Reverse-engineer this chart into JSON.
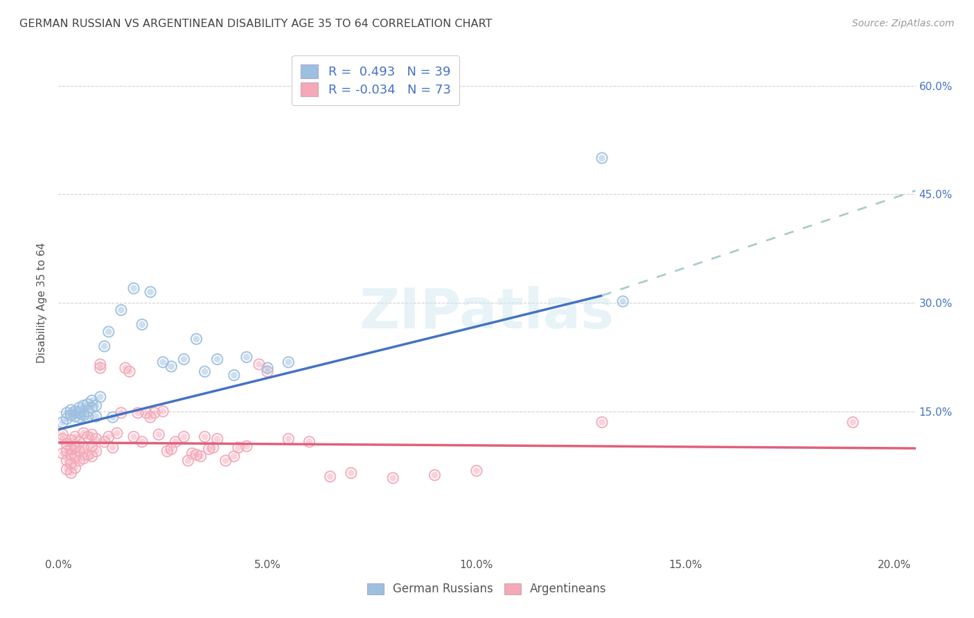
{
  "title": "GERMAN RUSSIAN VS ARGENTINEAN DISABILITY AGE 35 TO 64 CORRELATION CHART",
  "source": "Source: ZipAtlas.com",
  "ylabel": "Disability Age 35 to 64",
  "xlim": [
    0.0,
    0.205
  ],
  "ylim": [
    -0.05,
    0.65
  ],
  "xticks": [
    0.0,
    0.05,
    0.1,
    0.15,
    0.2
  ],
  "xtick_labels": [
    "0.0%",
    "5.0%",
    "10.0%",
    "15.0%",
    "20.0%"
  ],
  "yticks_right": [
    0.15,
    0.3,
    0.45,
    0.6
  ],
  "ytick_labels_right": [
    "15.0%",
    "30.0%",
    "45.0%",
    "60.0%"
  ],
  "german_russian_color": "#9DBFE0",
  "argentinean_color": "#F4A8B8",
  "regression_blue_color": "#4472C4",
  "regression_pink_color": "#E0607A",
  "dashed_color": "#AACCCC",
  "R_blue": 0.493,
  "N_blue": 39,
  "R_pink": -0.034,
  "N_pink": 73,
  "background_color": "#FFFFFF",
  "grid_color": "#CCCCCC",
  "title_color": "#444444",
  "axis_color": "#555555",
  "legend_text_color": "#4472C4",
  "watermark": "ZIPatlas",
  "blue_line_x0": 0.0,
  "blue_line_y0": 0.125,
  "blue_line_x1": 0.13,
  "blue_line_y1": 0.31,
  "dash_line_x1": 0.205,
  "dash_line_y1": 0.455,
  "pink_line_x0": 0.0,
  "pink_line_y0": 0.107,
  "pink_line_x1": 0.205,
  "pink_line_y1": 0.099,
  "german_russians_x": [
    0.001,
    0.002,
    0.002,
    0.003,
    0.003,
    0.004,
    0.004,
    0.005,
    0.005,
    0.005,
    0.006,
    0.006,
    0.007,
    0.007,
    0.007,
    0.008,
    0.008,
    0.009,
    0.009,
    0.01,
    0.011,
    0.012,
    0.013,
    0.015,
    0.018,
    0.02,
    0.022,
    0.025,
    0.027,
    0.03,
    0.033,
    0.035,
    0.038,
    0.042,
    0.045,
    0.05,
    0.055,
    0.13,
    0.135
  ],
  "german_russians_y": [
    0.135,
    0.148,
    0.14,
    0.145,
    0.152,
    0.15,
    0.143,
    0.148,
    0.155,
    0.142,
    0.158,
    0.145,
    0.16,
    0.15,
    0.142,
    0.165,
    0.155,
    0.158,
    0.143,
    0.17,
    0.24,
    0.26,
    0.142,
    0.29,
    0.32,
    0.27,
    0.315,
    0.218,
    0.212,
    0.222,
    0.25,
    0.205,
    0.222,
    0.2,
    0.225,
    0.21,
    0.218,
    0.5,
    0.302
  ],
  "argentineans_x": [
    0.001,
    0.001,
    0.001,
    0.002,
    0.002,
    0.002,
    0.002,
    0.003,
    0.003,
    0.003,
    0.003,
    0.003,
    0.004,
    0.004,
    0.004,
    0.004,
    0.005,
    0.005,
    0.005,
    0.006,
    0.006,
    0.006,
    0.007,
    0.007,
    0.008,
    0.008,
    0.008,
    0.009,
    0.009,
    0.01,
    0.01,
    0.011,
    0.012,
    0.013,
    0.014,
    0.015,
    0.016,
    0.017,
    0.018,
    0.019,
    0.02,
    0.021,
    0.022,
    0.023,
    0.024,
    0.025,
    0.026,
    0.027,
    0.028,
    0.03,
    0.031,
    0.032,
    0.033,
    0.034,
    0.035,
    0.036,
    0.037,
    0.038,
    0.04,
    0.042,
    0.043,
    0.045,
    0.048,
    0.05,
    0.055,
    0.06,
    0.065,
    0.07,
    0.08,
    0.09,
    0.1,
    0.13,
    0.19
  ],
  "argentineans_y": [
    0.118,
    0.112,
    0.092,
    0.095,
    0.105,
    0.082,
    0.07,
    0.11,
    0.098,
    0.09,
    0.078,
    0.065,
    0.115,
    0.1,
    0.088,
    0.072,
    0.108,
    0.095,
    0.082,
    0.12,
    0.1,
    0.085,
    0.115,
    0.09,
    0.118,
    0.102,
    0.088,
    0.112,
    0.095,
    0.215,
    0.21,
    0.108,
    0.115,
    0.1,
    0.12,
    0.148,
    0.21,
    0.205,
    0.115,
    0.148,
    0.108,
    0.148,
    0.142,
    0.148,
    0.118,
    0.15,
    0.095,
    0.098,
    0.108,
    0.115,
    0.082,
    0.092,
    0.09,
    0.088,
    0.115,
    0.098,
    0.1,
    0.112,
    0.082,
    0.088,
    0.1,
    0.102,
    0.215,
    0.205,
    0.112,
    0.108,
    0.06,
    0.065,
    0.058,
    0.062,
    0.068,
    0.135,
    0.135
  ]
}
